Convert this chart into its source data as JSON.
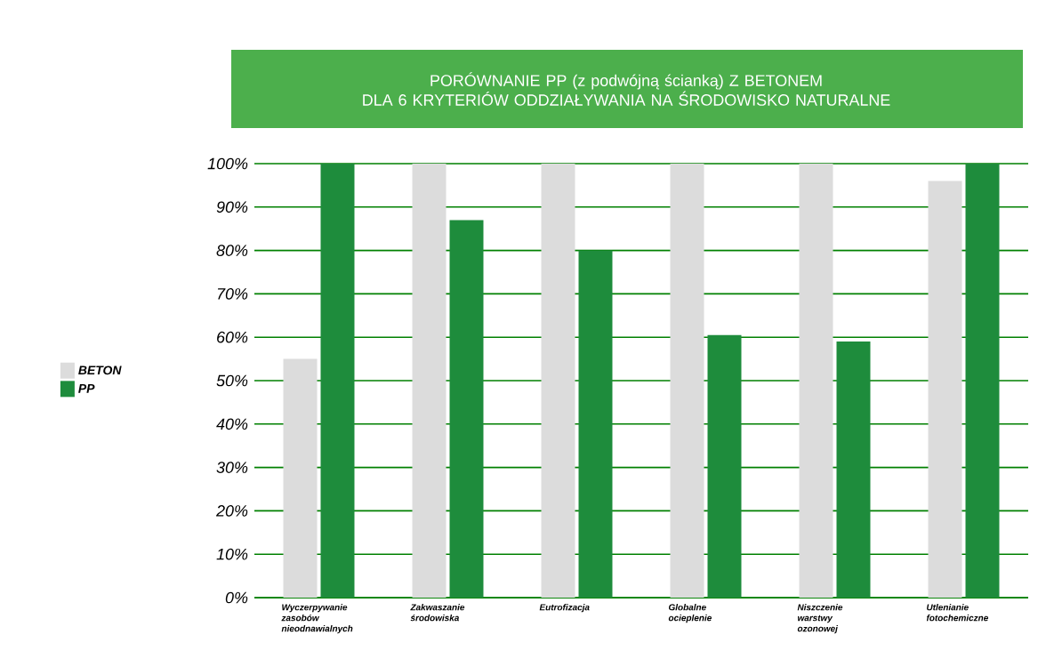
{
  "chart_data": {
    "type": "bar",
    "title": "PORÓWNANIE PP (z podwójną ścianką) Z BETONEM\nDLA 6 KRYTERIÓW ODDZIAŁYWANIA NA ŚRODOWISKO NATURALNE",
    "categories": [
      "Wyczerpywanie zasobów nieodnawialnych",
      "Zakwaszanie środowiska",
      "Eutrofizacja",
      "Globalne ocieplenie",
      "Niszczenie warstwy ozonowej",
      "Utlenianie fotochemiczne"
    ],
    "series": [
      {
        "name": "BETON",
        "color": "#dcdcdc",
        "values": [
          55,
          100,
          100,
          100,
          100,
          96
        ]
      },
      {
        "name": "PP",
        "color": "#1e8c3c",
        "values": [
          100,
          87,
          80,
          60.5,
          59,
          100
        ]
      }
    ],
    "ylim": [
      0,
      100
    ],
    "yticks": [
      {
        "value": 0,
        "label": "0%"
      },
      {
        "value": 10,
        "label": "10%"
      },
      {
        "value": 20,
        "label": "20%"
      },
      {
        "value": 30,
        "label": "30%"
      },
      {
        "value": 40,
        "label": "40%"
      },
      {
        "value": 50,
        "label": "50%"
      },
      {
        "value": 60,
        "label": "60%"
      },
      {
        "value": 70,
        "label": "70%"
      },
      {
        "value": 80,
        "label": "80%"
      },
      {
        "value": 90,
        "label": "90%"
      },
      {
        "value": 100,
        "label": "100%"
      }
    ],
    "grid": "y",
    "legend": "left"
  }
}
